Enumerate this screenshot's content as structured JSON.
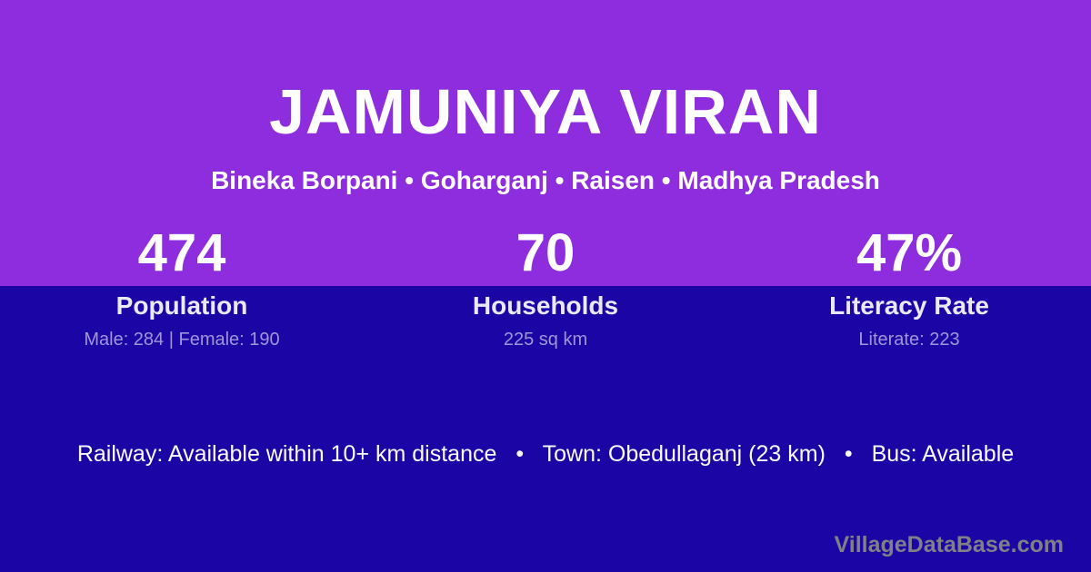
{
  "colors": {
    "top_background": "#8D2DDE",
    "bottom_background": "#1B05A5",
    "text_primary": "#FFFFFF",
    "text_label": "#EBE8F8",
    "text_detail": "#A096D7",
    "watermark": "#808087"
  },
  "header": {
    "title": "JAMUNIYA VIRAN",
    "breadcrumb": "Bineka Borpani • Goharganj • Raisen • Madhya Pradesh"
  },
  "stats": [
    {
      "value": "474",
      "label": "Population",
      "detail": "Male: 284 | Female: 190"
    },
    {
      "value": "70",
      "label": "Households",
      "detail": "225 sq km"
    },
    {
      "value": "47%",
      "label": "Literacy Rate",
      "detail": "Literate: 223"
    }
  ],
  "footer": {
    "bullet": "•",
    "items": [
      "Railway: Available within 10+ km distance",
      "Town: Obedullaganj (23 km)",
      "Bus: Available"
    ]
  },
  "watermark": "VillageDataBase.com"
}
